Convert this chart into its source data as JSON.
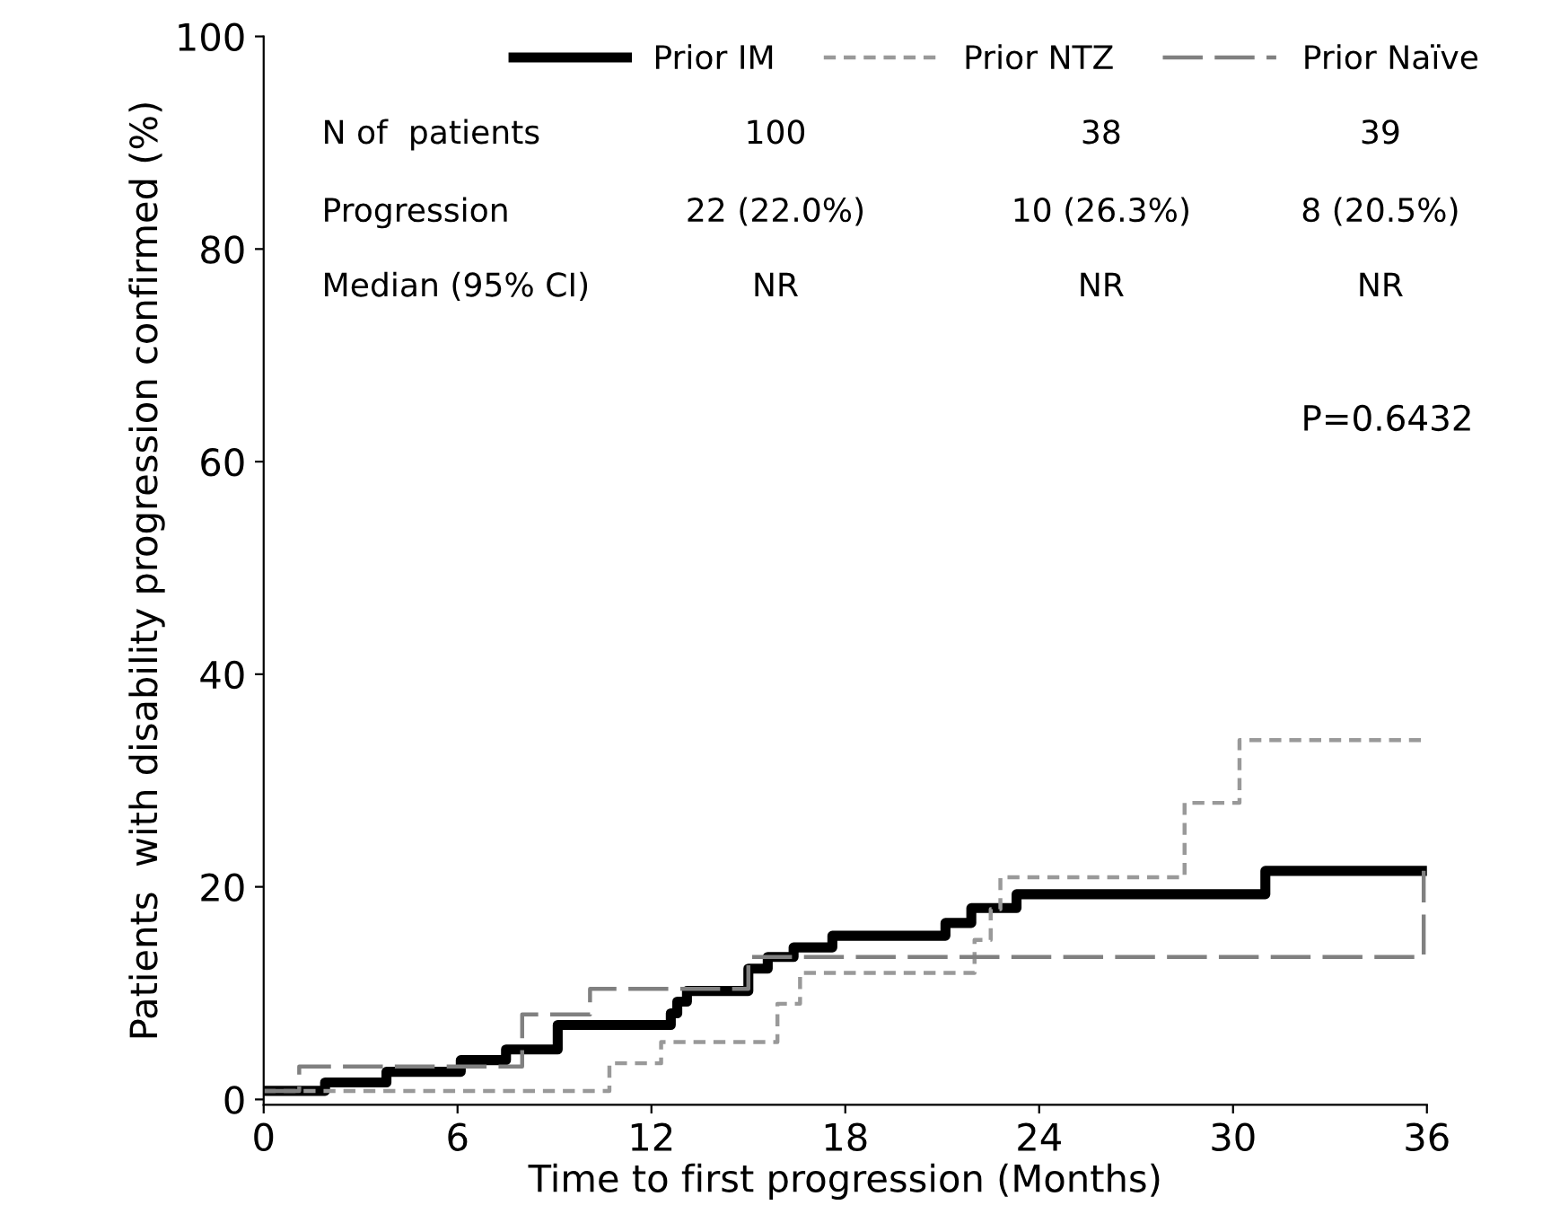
{
  "chart_data": {
    "type": "step",
    "xlabel": "Time to first progression (Months)",
    "ylabel": "Patients  with disability progression confirmed (%)",
    "xlim": [
      0,
      36
    ],
    "xticks": [
      0,
      6,
      12,
      18,
      24,
      30,
      36
    ],
    "ylim": [
      -0.5,
      100
    ],
    "yticks": [
      0,
      20,
      40,
      60,
      80,
      100
    ],
    "grid": false,
    "legend": "top right",
    "marker": "none",
    "series": [
      {
        "name": "Prior IM",
        "color": "#000000",
        "line_style": "solid",
        "x": [
          0,
          1.9,
          3.8,
          6.1,
          7.5,
          9.1,
          12.6,
          12.8,
          13.1,
          15.0,
          15.6,
          16.4,
          17.6,
          21.1,
          21.9,
          23.3,
          31.0,
          36.0
        ],
        "values": [
          0.8,
          1.6,
          2.6,
          3.7,
          4.7,
          7.0,
          8.1,
          9.2,
          10.2,
          12.3,
          13.4,
          14.3,
          15.4,
          16.6,
          18.0,
          19.3,
          21.5,
          21.5
        ]
      },
      {
        "name": "Prior NTZ",
        "color": "#999999",
        "line_style": "dashed",
        "x": [
          0,
          10.7,
          12.3,
          15.9,
          16.6,
          22.0,
          22.5,
          22.8,
          28.5,
          30.2,
          36.0
        ],
        "values": [
          0.8,
          3.4,
          5.4,
          9.0,
          11.9,
          15.0,
          17.9,
          20.9,
          27.9,
          33.8,
          33.8
        ]
      },
      {
        "name": "Prior Naïve",
        "color": "#808080",
        "line_style": "dashed",
        "x": [
          0,
          1.1,
          8.0,
          10.1,
          15.0,
          35.9
        ],
        "values": [
          0.8,
          3.1,
          8.0,
          10.4,
          13.4,
          21.5
        ]
      }
    ],
    "annotations": [
      "N of  patients",
      "100",
      "38",
      "39",
      "Progression",
      "22 (22.0%)",
      "10 (26.3%)",
      "8 (20.5%)",
      "Median (95% CI)",
      "NR",
      "NR",
      "NR",
      "P=0.6432"
    ]
  }
}
